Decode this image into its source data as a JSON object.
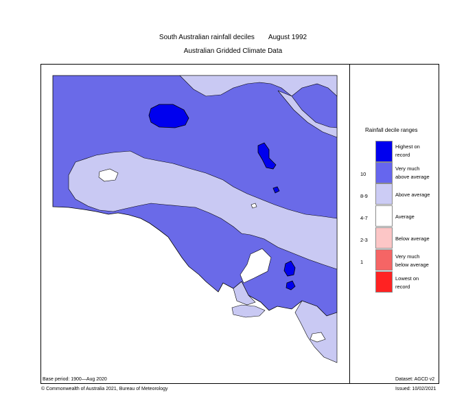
{
  "title": {
    "main": "South Australian rainfall deciles",
    "period": "August 1992",
    "subtitle": "Australian Gridded Climate Data"
  },
  "legend": {
    "title": "Rainfall decile ranges",
    "items": [
      {
        "label_line1": "Highest on",
        "label_line2": "record",
        "range": "",
        "color": "#0000ee"
      },
      {
        "label_line1": "Very much",
        "label_line2": "above average",
        "range": "10",
        "color": "#6666ee"
      },
      {
        "label_line1": "Above average",
        "label_line2": "",
        "range": "8-9",
        "color": "#ccccf5"
      },
      {
        "label_line1": "Average",
        "label_line2": "",
        "range": "4-7",
        "color": "#ffffff"
      },
      {
        "label_line1": "Below average",
        "label_line2": "",
        "range": "2-3",
        "color": "#fcc6c6"
      },
      {
        "label_line1": "Very much",
        "label_line2": "below average",
        "range": "1",
        "color": "#f56565"
      },
      {
        "label_line1": "Lowest on",
        "label_line2": "record",
        "range": "",
        "color": "#ff2222"
      }
    ]
  },
  "footer": {
    "base_period": "Base period: 1900—Aug 2020",
    "dataset": "Dataset: AGCD v2",
    "copyright": "© Commonwealth of Australia 2021, Bureau of Meteorology",
    "issued": "Issued: 10/02/2021"
  },
  "colors": {
    "very_much_above": "#6a6ae8",
    "above": "#c9c9f3",
    "highest": "#0000ee",
    "average": "#ffffff",
    "outline": "#000000"
  }
}
